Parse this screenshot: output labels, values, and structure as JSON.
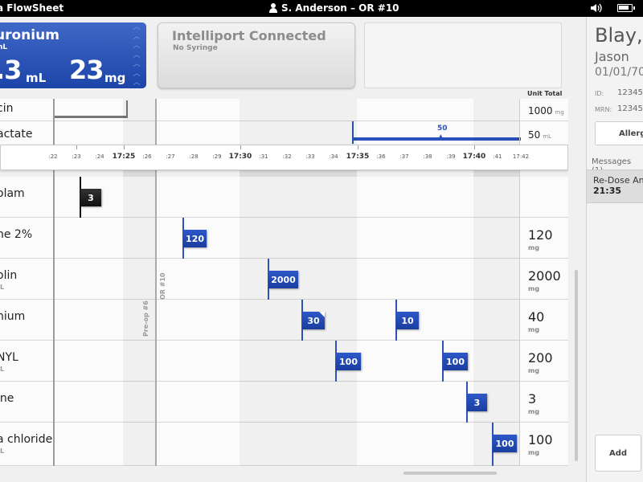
{
  "topbar": {
    "app_title": "a FlowSheet",
    "user_label": "S. Anderson  –  OR #10",
    "icons": [
      "user-icon",
      "speaker-icon",
      "battery-icon"
    ]
  },
  "active_drug": {
    "name": "uronium",
    "concentration": "mL",
    "volume": ".3",
    "volume_unit": "mL",
    "dose": "23",
    "dose_unit": "mg",
    "color": "#2a52be"
  },
  "connection": {
    "title": "Intelliport Connected",
    "subtitle": "No Syringe"
  },
  "unit_total_header": "Unit Total",
  "infusions": [
    {
      "name": "cin",
      "total": "1000",
      "unit": "mg"
    },
    {
      "name": "actate",
      "total": "50",
      "unit": "mL",
      "bar_label": "50"
    }
  ],
  "timeline": {
    "ticks": [
      ":22",
      ":23",
      ":24",
      "17:25",
      ":26",
      ":27",
      ":28",
      ":29",
      "17:30",
      ":31",
      ":32",
      ":33",
      ":34",
      "17:35",
      ":36",
      ":37",
      ":38",
      ":39",
      "17:40",
      ":41",
      "17:42"
    ]
  },
  "location_markers": [
    "Pre-op #6",
    "OR #10"
  ],
  "drugs": [
    {
      "name": "olam",
      "sub": "",
      "total": "",
      "unit": "",
      "doses": [
        "3"
      ]
    },
    {
      "name": "ne 2%",
      "sub": "",
      "total": "120",
      "unit": "mg",
      "doses": [
        "120"
      ]
    },
    {
      "name": "olin",
      "sub": "L",
      "total": "2000",
      "unit": "mg",
      "doses": [
        "2000"
      ]
    },
    {
      "name": "nium",
      "sub": "",
      "total": "40",
      "unit": "mg",
      "doses": [
        "30",
        "10"
      ]
    },
    {
      "name": "NYL",
      "sub": "L",
      "total": "200",
      "unit": "mg",
      "doses": [
        "100",
        "100"
      ]
    },
    {
      "name": "ine",
      "sub": "",
      "total": "3",
      "unit": "mg",
      "doses": [
        "3"
      ]
    },
    {
      "name": "a chloride",
      "sub": "L",
      "total": "100",
      "unit": "mg",
      "doses": [
        "100"
      ]
    }
  ],
  "patient": {
    "last_name": "Blay,",
    "first_name": "Jason",
    "dob": "01/01/70",
    "id_label": "ID:",
    "id_value": "12345",
    "mrn_label": "MRN:",
    "mrn_value": "12345",
    "allergies_label": "Allergi",
    "messages_header": "Messages (1)",
    "message_text": "Re-Dose An",
    "message_time": "21:35",
    "add_label": "Add"
  }
}
